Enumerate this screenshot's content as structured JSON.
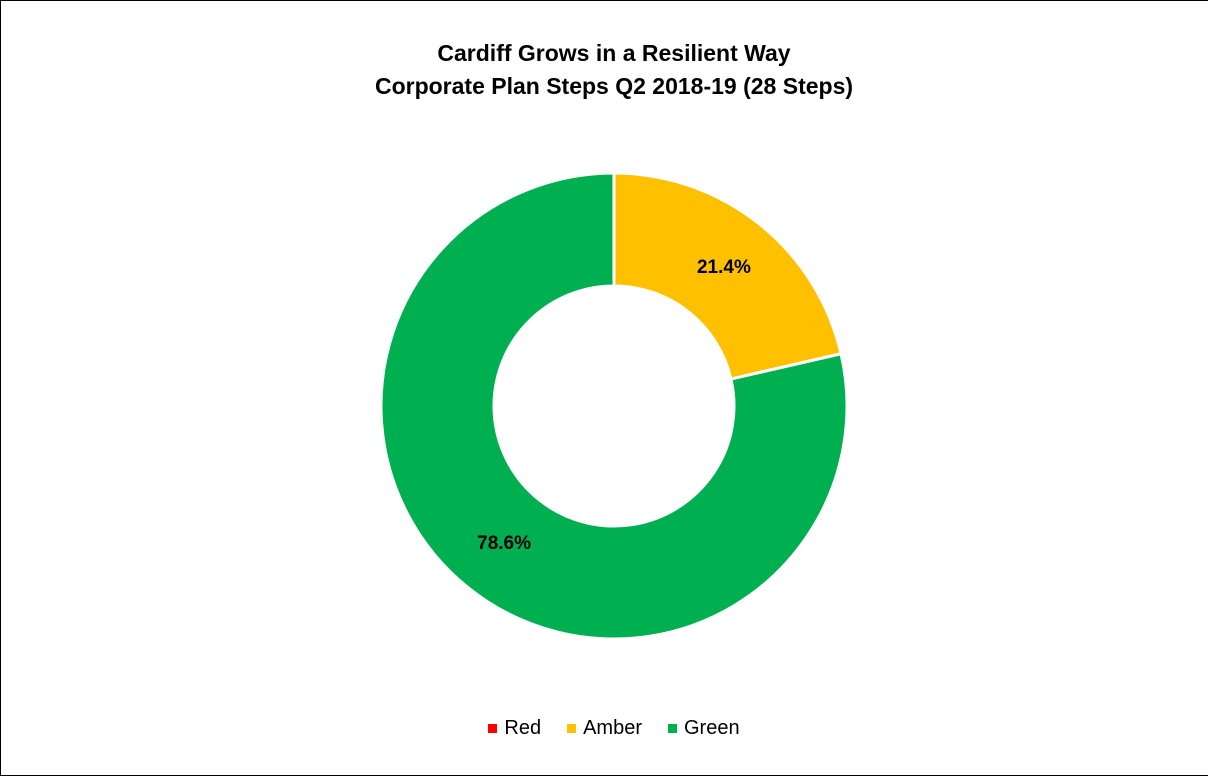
{
  "chart_data": {
    "type": "pie",
    "variant": "donut",
    "title": "Cardiff Grows in a Resilient Way",
    "subtitle": "Corporate Plan Steps Q2 2018-19 (28 Steps)",
    "legend_position": "bottom",
    "categories": [
      "Red",
      "Amber",
      "Green"
    ],
    "values": [
      0.0,
      21.4,
      78.6
    ],
    "value_labels": [
      "",
      "21.4%",
      "78.6%"
    ],
    "colors": [
      "#ff0000",
      "#ffc000",
      "#00b050"
    ]
  }
}
